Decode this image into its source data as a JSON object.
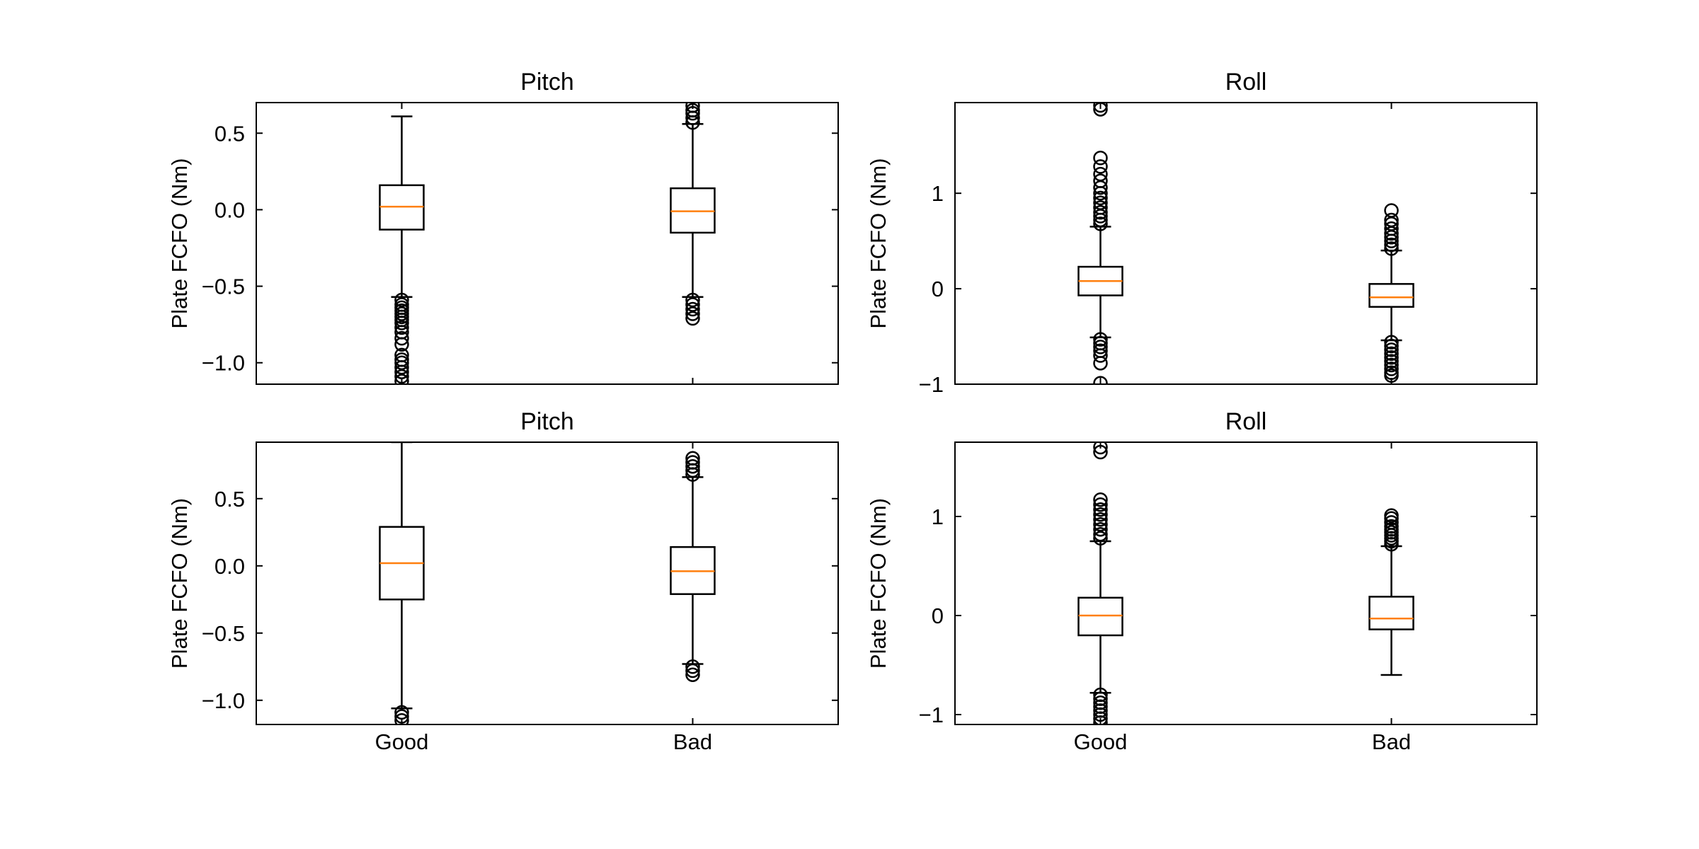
{
  "chart_data": [
    {
      "type": "box",
      "title": "Pitch",
      "ylabel": "Plate FCFO (Nm)",
      "categories": [
        "Good",
        "Bad"
      ],
      "show_xticklabels": false,
      "ylim": [
        -1.14,
        0.7
      ],
      "yticks": [
        0.5,
        0.0,
        -0.5,
        -1.0
      ],
      "yticklabels": [
        "0.5",
        "0.0",
        "−0.5",
        "−1.0"
      ],
      "boxes": [
        {
          "name": "Good",
          "q1": -0.13,
          "median": 0.02,
          "q3": 0.16,
          "whislo": -0.57,
          "whishi": 0.61,
          "fliers": [
            -0.59,
            -0.62,
            -0.64,
            -0.66,
            -0.68,
            -0.7,
            -0.72,
            -0.74,
            -0.77,
            -0.8,
            -0.84,
            -0.88,
            -0.95,
            -0.98,
            -1.0,
            -1.03,
            -1.06,
            -1.09,
            -1.12
          ]
        },
        {
          "name": "Bad",
          "q1": -0.15,
          "median": -0.01,
          "q3": 0.14,
          "whislo": -0.57,
          "whishi": 0.56,
          "fliers": [
            0.57,
            0.6,
            0.63,
            0.65,
            0.68,
            -0.59,
            -0.62,
            -0.65,
            -0.68,
            -0.71
          ]
        }
      ]
    },
    {
      "type": "box",
      "title": "Roll",
      "ylabel": "Plate FCFO (Nm)",
      "categories": [
        "Good",
        "Bad"
      ],
      "show_xticklabels": false,
      "ylim": [
        -1.0,
        1.95
      ],
      "yticks": [
        1,
        0,
        -1
      ],
      "yticklabels": [
        "1",
        "0",
        "−1"
      ],
      "boxes": [
        {
          "name": "Good",
          "q1": -0.07,
          "median": 0.08,
          "q3": 0.23,
          "whislo": -0.51,
          "whishi": 0.65,
          "fliers": [
            0.68,
            0.72,
            0.76,
            0.8,
            0.85,
            0.9,
            0.95,
            1.0,
            1.06,
            1.13,
            1.2,
            1.28,
            1.37,
            1.88,
            1.92,
            -0.53,
            -0.57,
            -0.61,
            -0.65,
            -0.7,
            -0.78,
            -0.99
          ]
        },
        {
          "name": "Bad",
          "q1": -0.19,
          "median": -0.09,
          "q3": 0.05,
          "whislo": -0.54,
          "whishi": 0.4,
          "fliers": [
            0.42,
            0.46,
            0.5,
            0.54,
            0.58,
            0.63,
            0.68,
            0.72,
            0.82,
            -0.56,
            -0.6,
            -0.64,
            -0.68,
            -0.72,
            -0.76,
            -0.8,
            -0.84,
            -0.88,
            -0.91
          ]
        }
      ]
    },
    {
      "type": "box",
      "title": "Pitch",
      "ylabel": "Plate FCFO (Nm)",
      "categories": [
        "Good",
        "Bad"
      ],
      "show_xticklabels": true,
      "ylim": [
        -1.18,
        0.92
      ],
      "yticks": [
        0.5,
        0.0,
        -0.5,
        -1.0
      ],
      "yticklabels": [
        "0.5",
        "0.0",
        "−0.5",
        "−1.0"
      ],
      "boxes": [
        {
          "name": "Good",
          "q1": -0.25,
          "median": 0.02,
          "q3": 0.29,
          "whislo": -1.06,
          "whishi": 0.92,
          "fliers": [
            -1.09,
            -1.12,
            -1.15
          ]
        },
        {
          "name": "Bad",
          "q1": -0.21,
          "median": -0.04,
          "q3": 0.14,
          "whislo": -0.73,
          "whishi": 0.66,
          "fliers": [
            0.68,
            0.71,
            0.74,
            0.77,
            0.8,
            -0.75,
            -0.78,
            -0.81
          ]
        }
      ]
    },
    {
      "type": "box",
      "title": "Roll",
      "ylabel": "Plate FCFO (Nm)",
      "categories": [
        "Good",
        "Bad"
      ],
      "show_xticklabels": true,
      "ylim": [
        -1.1,
        1.75
      ],
      "yticks": [
        1,
        0,
        -1
      ],
      "yticklabels": [
        "1",
        "0",
        "−1"
      ],
      "boxes": [
        {
          "name": "Good",
          "q1": -0.2,
          "median": 0.0,
          "q3": 0.18,
          "whislo": -0.78,
          "whishi": 0.75,
          "fliers": [
            0.78,
            0.82,
            0.87,
            0.92,
            0.97,
            1.02,
            1.07,
            1.12,
            1.17,
            1.65,
            1.7,
            -0.8,
            -0.84,
            -0.88,
            -0.92,
            -0.96,
            -1.0,
            -1.04,
            -1.08
          ]
        },
        {
          "name": "Bad",
          "q1": -0.14,
          "median": -0.03,
          "q3": 0.19,
          "whislo": -0.6,
          "whishi": 0.7,
          "fliers": [
            0.72,
            0.75,
            0.78,
            0.81,
            0.84,
            0.87,
            0.9,
            0.94,
            0.98,
            1.01
          ]
        }
      ]
    }
  ]
}
